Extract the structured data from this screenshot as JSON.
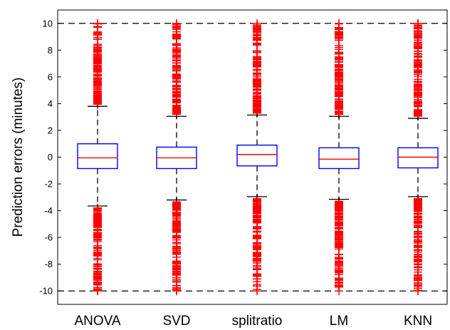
{
  "chart_data": {
    "type": "box",
    "ylabel": "Prediction errors (minutes)",
    "ylim": [
      -11,
      11
    ],
    "yticks": [
      -10,
      -8,
      -6,
      -4,
      -2,
      0,
      2,
      4,
      6,
      8,
      10
    ],
    "reference_lines": [
      10,
      -10
    ],
    "categories": [
      "ANOVA",
      "SVD",
      "splitratio",
      "LM",
      "KNN"
    ],
    "boxes": [
      {
        "name": "ANOVA",
        "q1": -0.85,
        "median": -0.05,
        "q3": 1.0,
        "whisker_low": -3.65,
        "whisker_high": 3.8
      },
      {
        "name": "SVD",
        "q1": -0.85,
        "median": -0.05,
        "q3": 0.75,
        "whisker_low": -3.2,
        "whisker_high": 3.05
      },
      {
        "name": "splitratio",
        "q1": -0.65,
        "median": 0.2,
        "q3": 0.9,
        "whisker_low": -2.95,
        "whisker_high": 3.15
      },
      {
        "name": "LM",
        "q1": -0.85,
        "median": -0.15,
        "q3": 0.7,
        "whisker_low": -3.15,
        "whisker_high": 3.05
      },
      {
        "name": "KNN",
        "q1": -0.8,
        "median": 0.0,
        "q3": 0.7,
        "whisker_low": -2.95,
        "whisker_high": 2.9
      }
    ],
    "outlier_range": {
      "low": -10,
      "high": 10
    },
    "colors": {
      "box": "#0000ff",
      "median": "#ff0000",
      "outlier": "#ff0000",
      "whisker": "#000000",
      "reference": "#000000"
    }
  }
}
